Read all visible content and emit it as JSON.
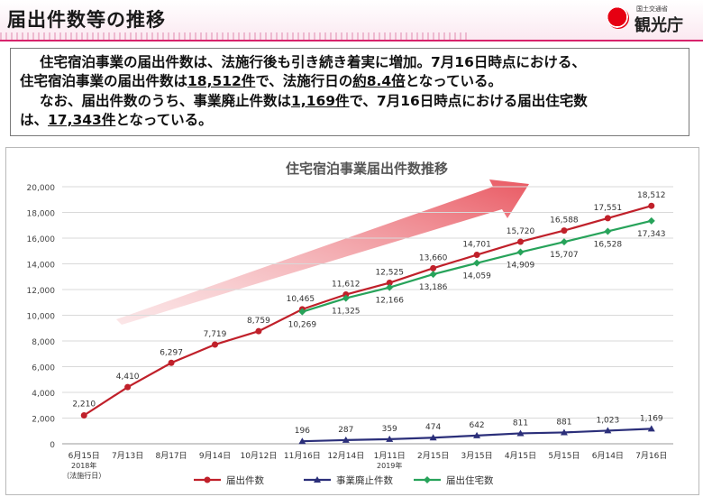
{
  "header": {
    "title": "届出件数等の推移"
  },
  "logo": {
    "ministry": "国土交通省",
    "agency": "観光庁"
  },
  "summary": {
    "l1": "住宅宿泊事業の届出件数は、法施行後も引き続き着実に増加。7月16日時点における、",
    "l2a": "住宅宿泊事業の届出件数は",
    "l2b": "18,512件",
    "l2c": "で、法施行日の",
    "l2d": "約8.4倍",
    "l2e": "となっている。",
    "l3a": "なお、届出件数のうち、事業廃止件数は",
    "l3b": "1,169件",
    "l3c": "で、7月16日時点における届出住宅数",
    "l4a": "は、",
    "l4b": "17,343件",
    "l4c": "となっている。"
  },
  "chart_data": {
    "type": "line",
    "title": "住宅宿泊事業届出件数推移",
    "categories": [
      "6月15日",
      "7月13日",
      "8月17日",
      "9月14日",
      "10月12日",
      "11月16日",
      "12月14日",
      "1月11日",
      "2月15日",
      "3月15日",
      "4月15日",
      "5月15日",
      "6月14日",
      "7月16日"
    ],
    "year_labels": [
      {
        "category": "6月15日",
        "text": "2018年"
      },
      {
        "category": "1月11日",
        "text": "2019年"
      }
    ],
    "sub_label": {
      "category": "6月15日",
      "text": "（法施行日）"
    },
    "ylim": [
      0,
      20000
    ],
    "yticks": [
      0,
      2000,
      4000,
      6000,
      8000,
      10000,
      12000,
      14000,
      16000,
      18000,
      20000
    ],
    "ytick_labels": [
      "0",
      "2,000",
      "4,000",
      "6,000",
      "8,000",
      "10,000",
      "12,000",
      "14,000",
      "16,000",
      "18,000",
      "20,000"
    ],
    "grid": true,
    "legend_position": "bottom",
    "series": [
      {
        "name": "届出件数",
        "color": "#c0202a",
        "marker": "circle",
        "values": [
          2210,
          4410,
          6297,
          7719,
          8759,
          10465,
          11612,
          12525,
          13660,
          14701,
          15720,
          16588,
          17551,
          18512
        ],
        "labels": [
          "2,210",
          "4,410",
          "6,297",
          "7,719",
          "8,759",
          "10,465",
          "11,612",
          "12,525",
          "13,660",
          "14,701",
          "15,720",
          "16,588",
          "17,551",
          "18,512"
        ]
      },
      {
        "name": "事業廃止件数",
        "color": "#2b2f7a",
        "marker": "triangle",
        "values": [
          null,
          null,
          null,
          null,
          null,
          196,
          287,
          359,
          474,
          642,
          811,
          881,
          1023,
          1169
        ],
        "labels": [
          "",
          "",
          "",
          "",
          "",
          "196",
          "287",
          "359",
          "474",
          "642",
          "811",
          "881",
          "1,023",
          "1,169"
        ]
      },
      {
        "name": "届出住宅数",
        "color": "#27a35a",
        "marker": "diamond",
        "values": [
          null,
          null,
          null,
          null,
          null,
          10269,
          11325,
          12166,
          13186,
          14059,
          14909,
          15707,
          16528,
          17343
        ],
        "labels": [
          "",
          "",
          "",
          "",
          "",
          "10,269",
          "11,325",
          "12,166",
          "13,186",
          "14,059",
          "14,909",
          "15,707",
          "16,528",
          "17,343"
        ]
      }
    ]
  }
}
